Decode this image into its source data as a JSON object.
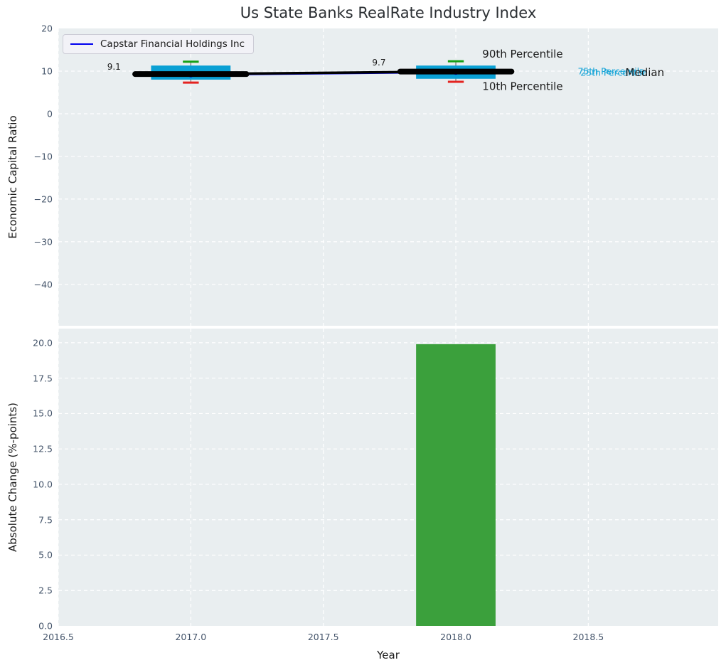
{
  "title": "Us State Banks RealRate Industry Index",
  "legend": {
    "label": "Capstar Financial Holdings Inc"
  },
  "colors": {
    "axes_bg": "#e9eef0",
    "grid": "#ffffff",
    "tick_label": "#44546a",
    "box_fill": "#0aa0d4",
    "whisker": "#555555",
    "cap_high": "#16a016",
    "cap_low": "#e42320",
    "median_line": "#000000",
    "capstar_line": "#0000ee",
    "bar_fill": "#3ba03c",
    "annotation_cyan": "#18a5d8",
    "annotation_dark": "#1a1a1a"
  },
  "chart_data": [
    {
      "type": "box",
      "ylabel": "Economic Capital Ratio",
      "xlim": [
        2016.5,
        2018.99
      ],
      "ylim": [
        -49.7,
        20
      ],
      "grid": true,
      "x_tick_values": [
        2016.5,
        2017.0,
        2017.5,
        2018.0,
        2018.5
      ],
      "y_ticks": {
        "values": [
          20,
          10,
          0,
          -10,
          -20,
          -30,
          -40
        ],
        "labels": [
          "20",
          "10",
          "0",
          "−10",
          "−20",
          "−30",
          "−40"
        ]
      },
      "boxes": [
        {
          "x": 2017,
          "p10": 7.3,
          "p25": 8.0,
          "median": 9.3,
          "p75": 11.3,
          "p90": 12.2
        },
        {
          "x": 2018,
          "p10": 7.5,
          "p25": 8.2,
          "median": 9.9,
          "p75": 11.3,
          "p90": 12.3
        }
      ],
      "box_half_width": 0.15,
      "cap_half_width": 0.03,
      "median_marker_half_width": 0.21,
      "series": [
        {
          "name": "Capstar Financial Holdings Inc",
          "x": [
            2017,
            2018
          ],
          "y": [
            9.1,
            9.7
          ]
        }
      ],
      "annotations": [
        {
          "text": "9.1",
          "x": 2016.71,
          "y": 10.9,
          "size": 12,
          "color": "#1a1a1a",
          "anchor": "middle"
        },
        {
          "text": "9.7",
          "x": 2017.71,
          "y": 11.9,
          "size": 12,
          "color": "#1a1a1a",
          "anchor": "middle"
        },
        {
          "text": "90th Percentile",
          "x": 2018.1,
          "y": 13.9,
          "size": 15,
          "color": "#1a1a1a",
          "anchor": "start"
        },
        {
          "text": "10th Percentile",
          "x": 2018.1,
          "y": 6.3,
          "size": 15,
          "color": "#1a1a1a",
          "anchor": "start"
        },
        {
          "text": "75th Percentile",
          "x": 2018.46,
          "y": 9.8,
          "size": 12.5,
          "color": "#18a5d8",
          "anchor": "start"
        },
        {
          "text": "25th Percentile",
          "x": 2018.47,
          "y": 9.5,
          "size": 12.5,
          "color": "#18a5d8",
          "anchor": "start"
        },
        {
          "text": "Median",
          "x": 2018.64,
          "y": 9.6,
          "size": 15,
          "color": "#1a1a1a",
          "anchor": "start"
        }
      ]
    },
    {
      "type": "bar",
      "ylabel": "Absolute Change (%-points)",
      "xlabel": "Year",
      "xlim": [
        2016.5,
        2018.99
      ],
      "ylim": [
        0,
        21
      ],
      "grid": true,
      "x_ticks": {
        "values": [
          2016.5,
          2017.0,
          2017.5,
          2018.0,
          2018.5
        ],
        "labels": [
          "2016.5",
          "2017.0",
          "2017.5",
          "2018.0",
          "2018.5"
        ]
      },
      "y_ticks": {
        "values": [
          0,
          2.5,
          5,
          7.5,
          10,
          12.5,
          15,
          17.5,
          20
        ],
        "labels": [
          "0.0",
          "2.5",
          "5.0",
          "7.5",
          "10.0",
          "12.5",
          "15.0",
          "17.5",
          "20.0"
        ]
      },
      "bars": [
        {
          "x": 2018,
          "value": 19.9
        }
      ],
      "bar_width": 0.3
    }
  ]
}
